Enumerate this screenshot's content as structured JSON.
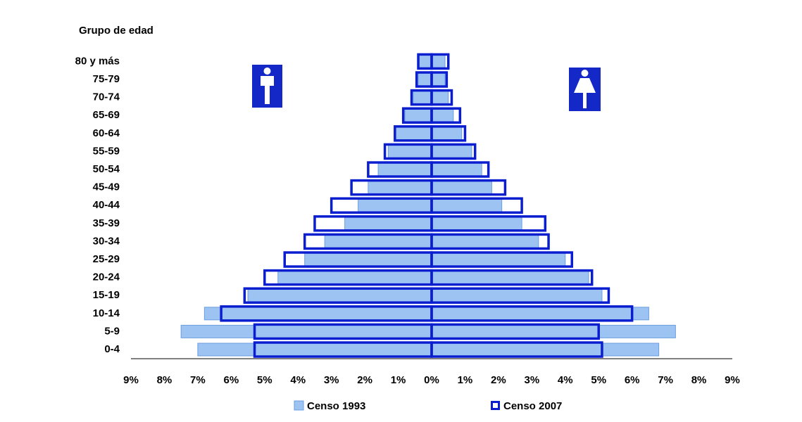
{
  "chart_data": {
    "type": "pyramid",
    "y_label": "Grupo de edad",
    "categories": [
      "0-4",
      "5-9",
      "10-14",
      "15-19",
      "20-24",
      "25-29",
      "30-34",
      "35-39",
      "40-44",
      "45-49",
      "50-54",
      "55-59",
      "60-64",
      "65-69",
      "70-74",
      "75-79",
      "80 y más"
    ],
    "series": [
      {
        "name": "Censo 1993",
        "color": "#9cc3f2",
        "style": "filled",
        "left": [
          -7.0,
          -7.5,
          -6.8,
          -5.5,
          -4.6,
          -3.8,
          -3.2,
          -2.6,
          -2.2,
          -1.9,
          -1.6,
          -1.3,
          -1.1,
          -0.8,
          -0.55,
          -0.4,
          -0.4
        ],
        "right": [
          6.8,
          7.3,
          6.5,
          5.1,
          4.7,
          4.0,
          3.2,
          2.7,
          2.1,
          1.8,
          1.5,
          1.2,
          0.9,
          0.65,
          0.5,
          0.4,
          0.4
        ]
      },
      {
        "name": "Censo 2007",
        "color": "#0a1ed0",
        "style": "outline",
        "left": [
          -5.3,
          -5.3,
          -6.3,
          -5.6,
          -5.0,
          -4.4,
          -3.8,
          -3.5,
          -3.0,
          -2.4,
          -1.9,
          -1.4,
          -1.1,
          -0.85,
          -0.6,
          -0.45,
          -0.4
        ],
        "right": [
          5.1,
          5.0,
          6.0,
          5.3,
          4.8,
          4.2,
          3.5,
          3.4,
          2.7,
          2.2,
          1.7,
          1.3,
          1.0,
          0.85,
          0.6,
          0.45,
          0.5
        ]
      }
    ],
    "xlim": [
      -9,
      9
    ],
    "xticks": [
      {
        "value": -9,
        "label": "9%"
      },
      {
        "value": -8,
        "label": "8%"
      },
      {
        "value": -7,
        "label": "7%"
      },
      {
        "value": -6,
        "label": "6%"
      },
      {
        "value": -5,
        "label": "5%"
      },
      {
        "value": -4,
        "label": "4%"
      },
      {
        "value": -3,
        "label": "3%"
      },
      {
        "value": -2,
        "label": "2%"
      },
      {
        "value": -1,
        "label": "1%"
      },
      {
        "value": 0,
        "label": "0%"
      },
      {
        "value": 1,
        "label": "1%"
      },
      {
        "value": 2,
        "label": "2%"
      },
      {
        "value": 3,
        "label": "3%"
      },
      {
        "value": 4,
        "label": "4%"
      },
      {
        "value": 5,
        "label": "5%"
      },
      {
        "value": 6,
        "label": "6%"
      },
      {
        "value": 7,
        "label": "7%"
      },
      {
        "value": 8,
        "label": "8%"
      },
      {
        "value": 9,
        "label": "9%"
      }
    ]
  }
}
